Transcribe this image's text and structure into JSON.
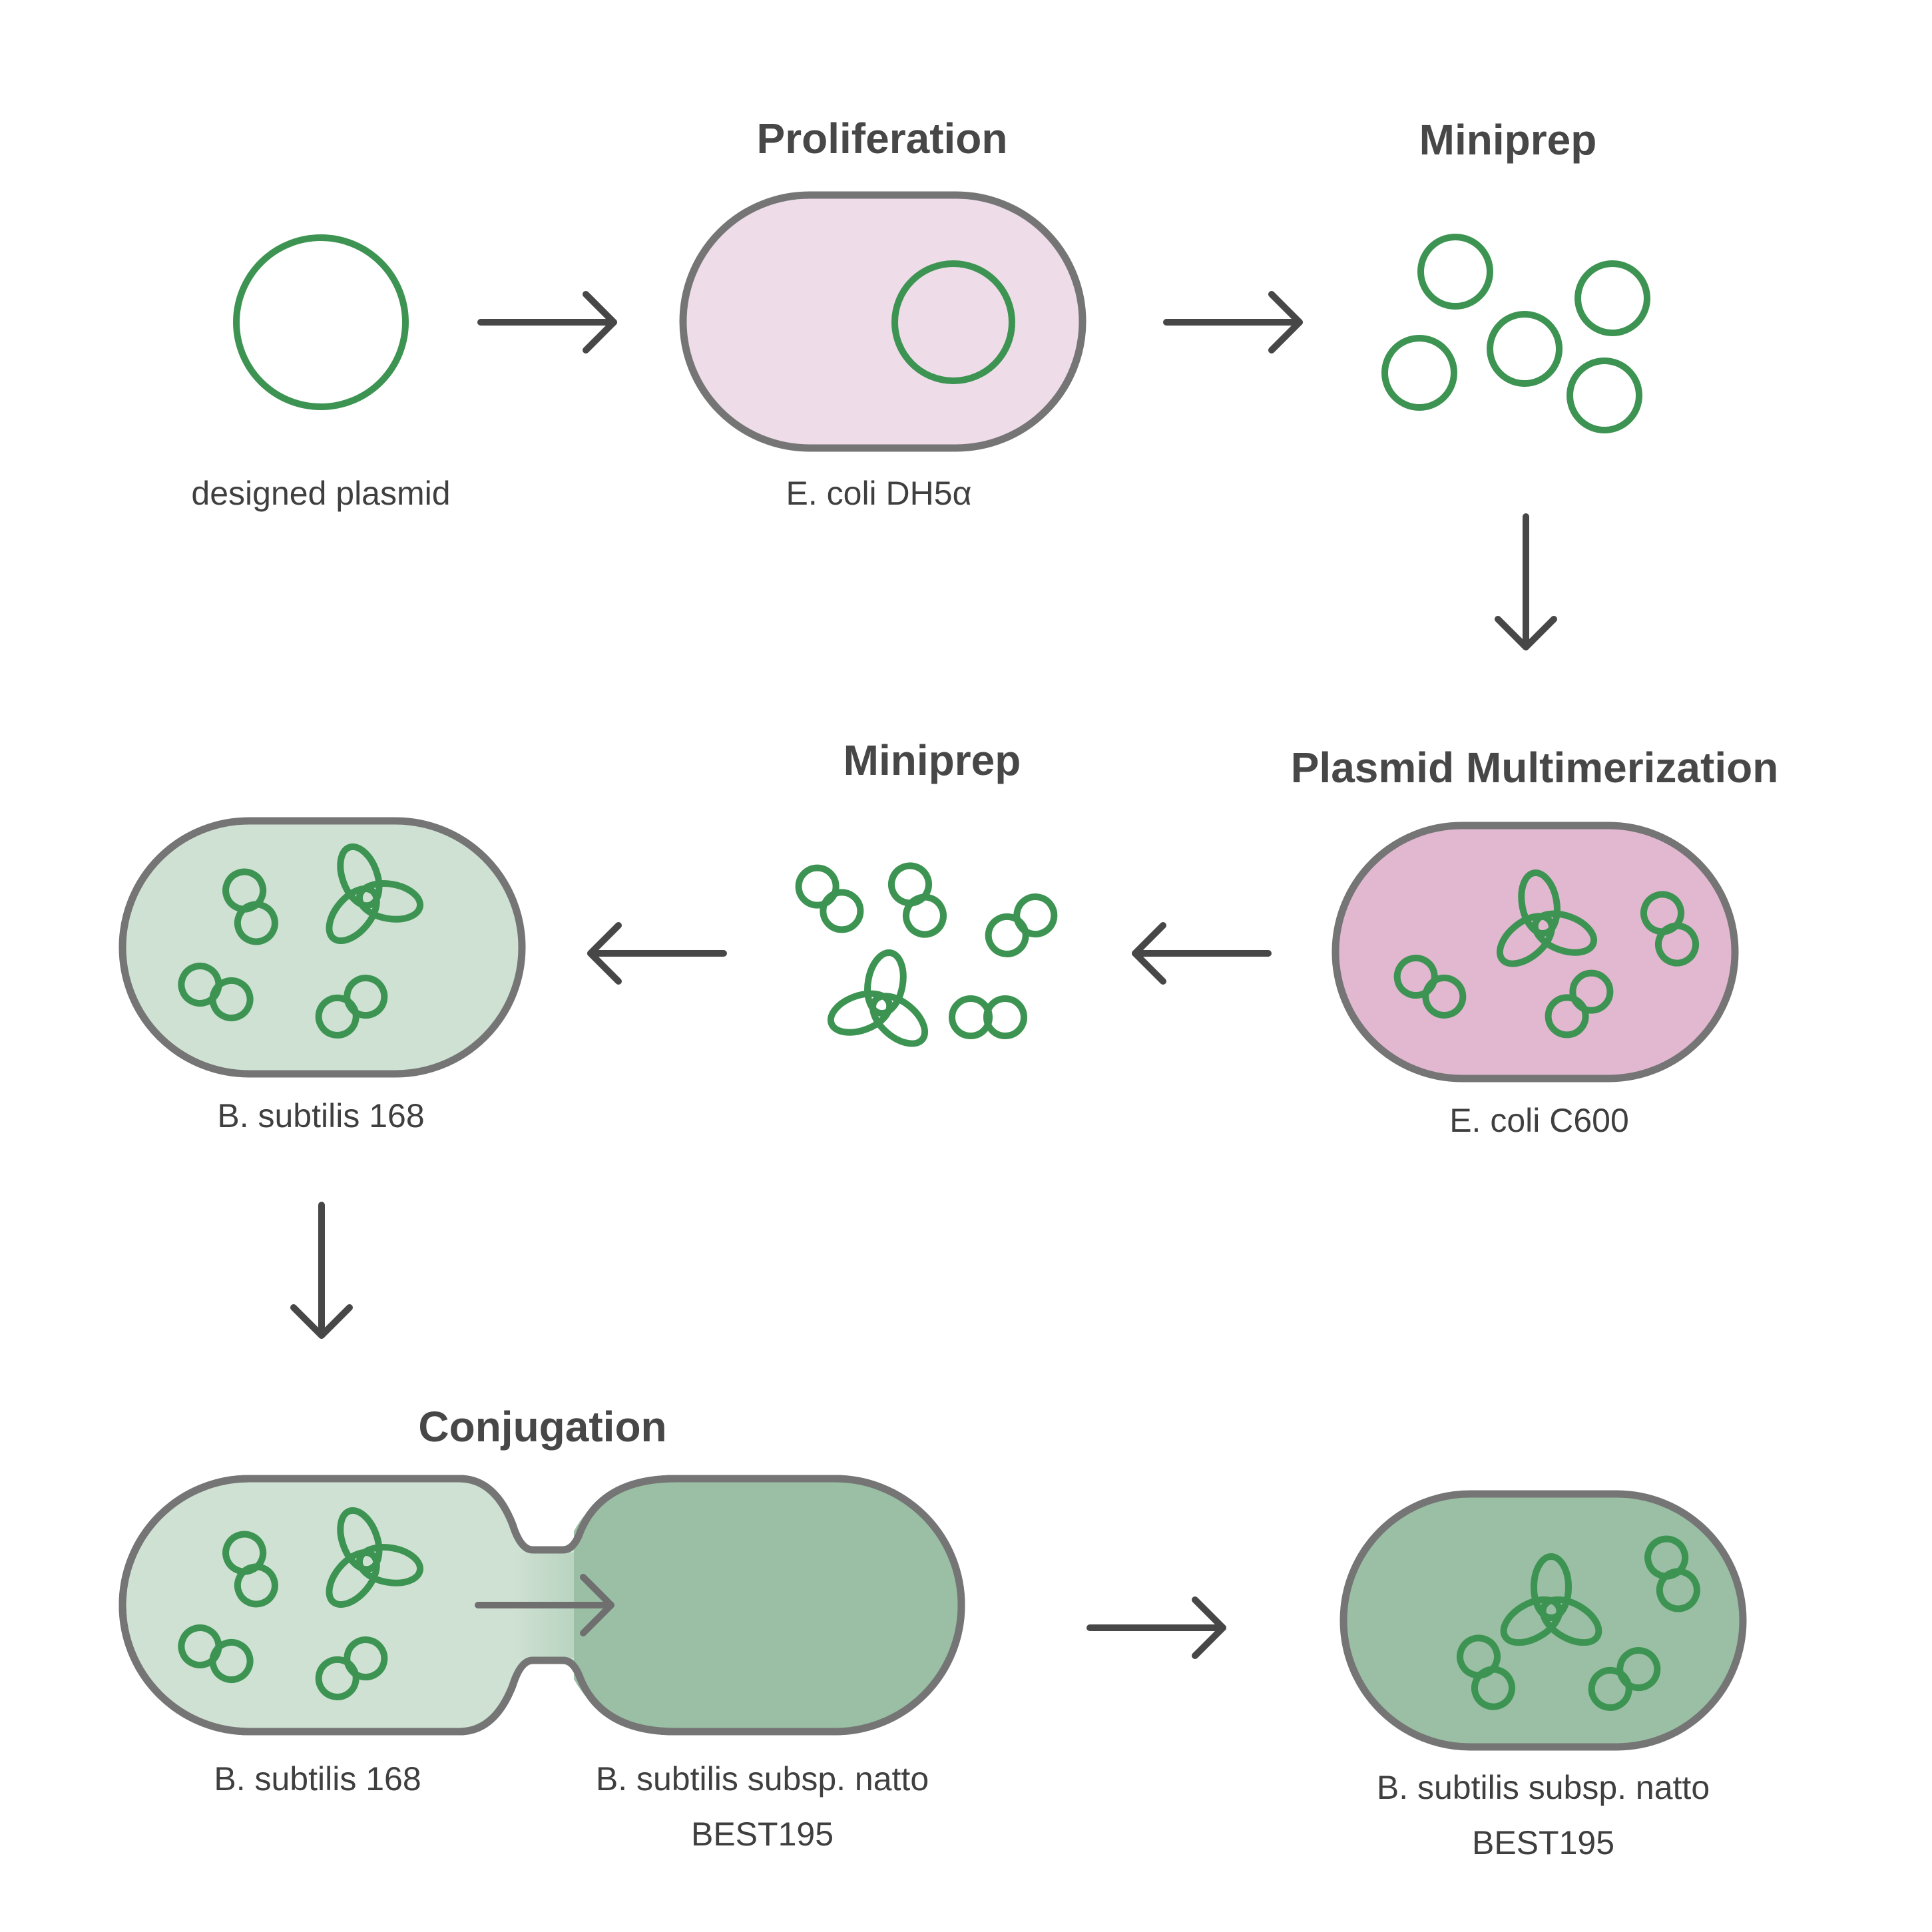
{
  "colors": {
    "plasmid_green": "#3d9452",
    "cell_outline": "#757575",
    "arrow": "#474747",
    "text": "#474747",
    "ecoli_dh5a_fill": "#eedde9",
    "ecoli_c600_fill": "#e2b8d1",
    "bsubtilis_168_fill": "#cfe1d3",
    "natto_fill": "#9abfa4"
  },
  "steps": {
    "proliferation": "Proliferation",
    "miniprep_top": "Miniprep",
    "plasmid_multimerization": "Plasmid Multimerization",
    "miniprep_middle": "Miniprep",
    "conjugation": "Conjugation"
  },
  "labels": {
    "designed_plasmid": "designed plasmid",
    "ecoli_dh5a": "E. coli DH5α",
    "ecoli_c600": "E. coli C600",
    "bsubtilis_168_middle": "B. subtilis 168",
    "bsubtilis_168_bottom": "B. subtilis 168",
    "natto_conjugation_line1": "B. subtilis subsp. natto",
    "natto_conjugation_line2": "BEST195",
    "natto_final_line1": "B. subtilis subsp. natto",
    "natto_final_line2": "BEST195"
  },
  "icons": {
    "plasmid_monomer": "ring-icon",
    "plasmid_dimer": "figure-eight-icon",
    "plasmid_trimer": "trefoil-icon",
    "arrow": "arrow-icon"
  }
}
